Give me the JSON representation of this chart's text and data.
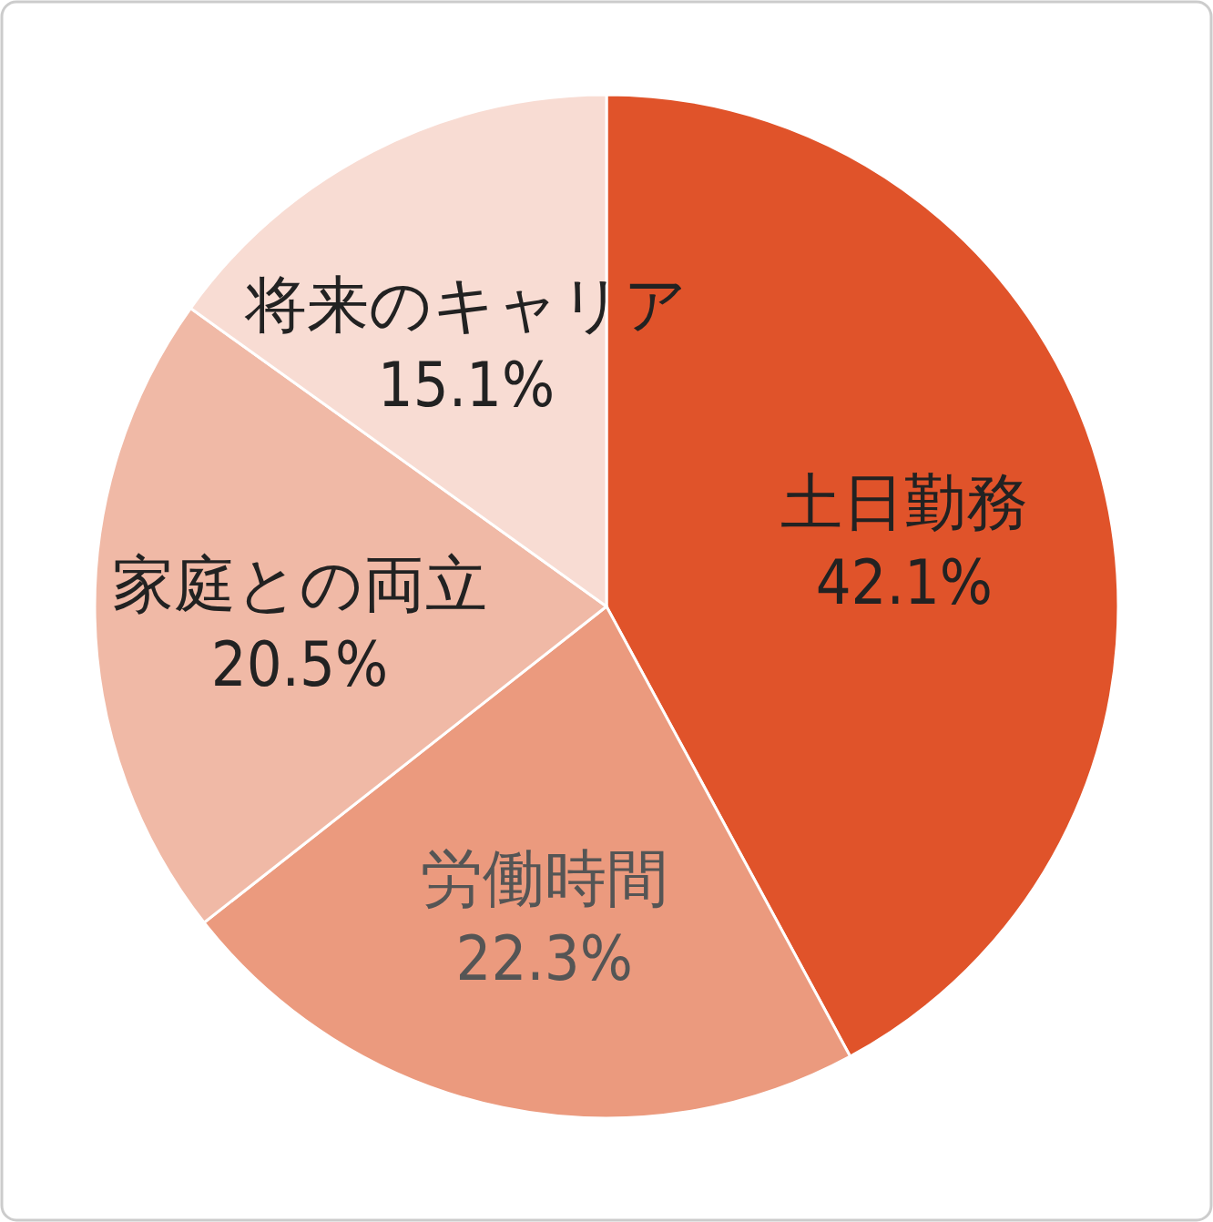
{
  "chart_data": {
    "type": "pie",
    "categories": [
      "土日勤務",
      "労働時間",
      "家庭との両立",
      "将来のキャリア"
    ],
    "values": [
      42.1,
      22.3,
      20.5,
      15.1
    ],
    "value_labels": [
      "42.1%",
      "22.3%",
      "20.5%",
      "15.1%"
    ],
    "colors": [
      "#e0532a",
      "#eb9a7e",
      "#f0b9a6",
      "#f8dcd3"
    ]
  }
}
